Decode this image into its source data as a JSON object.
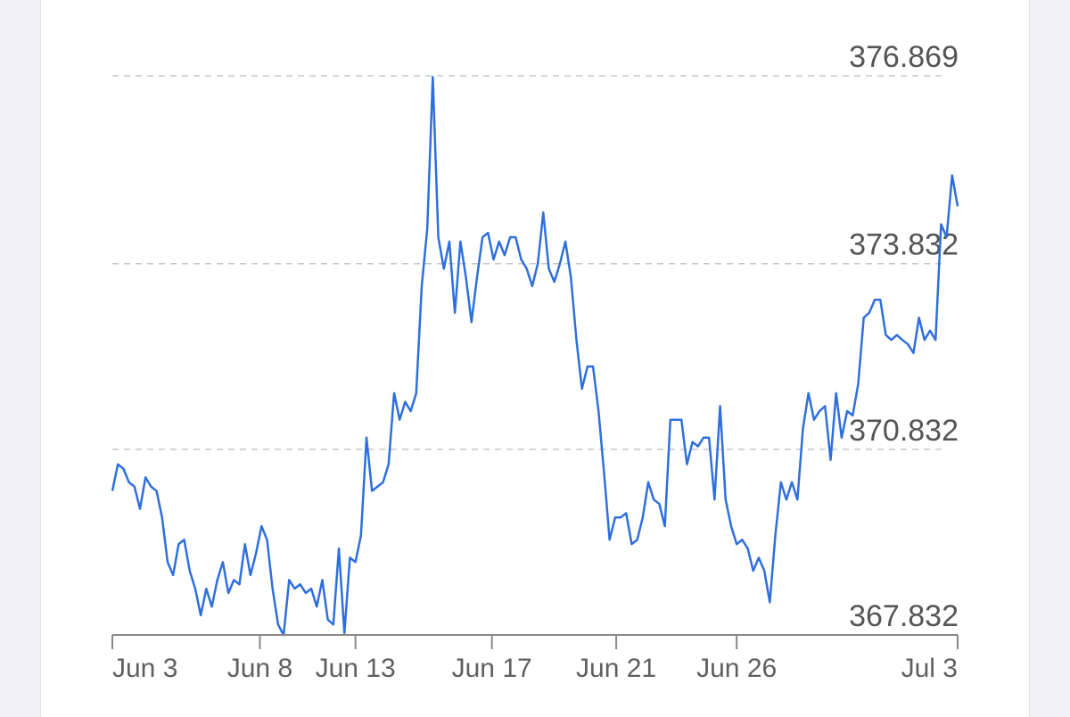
{
  "chart_data": {
    "type": "line",
    "values": [
      370.16,
      370.59,
      370.52,
      370.3,
      370.23,
      369.87,
      370.38,
      370.23,
      370.16,
      369.73,
      369.01,
      368.8,
      369.3,
      369.37,
      368.87,
      368.58,
      368.15,
      368.58,
      368.29,
      368.72,
      369.01,
      368.51,
      368.72,
      368.65,
      369.3,
      368.8,
      369.15,
      369.59,
      369.37,
      368.58,
      368.0,
      367.83,
      368.72,
      368.58,
      368.65,
      368.51,
      368.58,
      368.29,
      368.72,
      368.08,
      368.0,
      369.23,
      367.86,
      369.08,
      369.01,
      369.44,
      371.02,
      370.16,
      370.23,
      370.3,
      370.59,
      371.74,
      371.31,
      371.6,
      371.45,
      371.74,
      373.47,
      374.4,
      376.85,
      374.26,
      373.75,
      374.19,
      373.04,
      374.19,
      373.61,
      372.89,
      373.61,
      374.26,
      374.33,
      373.9,
      374.19,
      373.97,
      374.26,
      374.26,
      373.9,
      373.75,
      373.47,
      373.83,
      374.66,
      373.75,
      373.54,
      373.83,
      374.19,
      373.61,
      372.6,
      371.81,
      372.17,
      372.17,
      371.45,
      370.45,
      369.37,
      369.73,
      369.73,
      369.8,
      369.3,
      369.37,
      369.73,
      370.3,
      370.02,
      369.95,
      369.59,
      371.31,
      371.31,
      371.31,
      370.59,
      370.95,
      370.88,
      371.02,
      371.02,
      370.02,
      371.53,
      370.02,
      369.59,
      369.3,
      369.37,
      369.23,
      368.87,
      369.08,
      368.87,
      368.36,
      369.44,
      370.3,
      370.02,
      370.3,
      370.02,
      371.17,
      371.74,
      371.31,
      371.45,
      371.53,
      370.66,
      371.74,
      371.02,
      371.45,
      371.38,
      371.89,
      372.96,
      373.04,
      373.25,
      373.25,
      372.68,
      372.6,
      372.68,
      372.6,
      372.53,
      372.39,
      372.96,
      372.6,
      372.75,
      372.6,
      374.47,
      374.26,
      375.26,
      374.76
    ],
    "color": "#2f6fdd",
    "xlim": [
      0,
      153
    ],
    "xticks": [
      {
        "value": 0,
        "label": "Jun 3"
      },
      {
        "value": 26.7,
        "label": "Jun 8"
      },
      {
        "value": 44,
        "label": "Jun 13"
      },
      {
        "value": 68.7,
        "label": "Jun 17"
      },
      {
        "value": 91.2,
        "label": "Jun 21"
      },
      {
        "value": 113,
        "label": "Jun 26"
      },
      {
        "value": 153,
        "label": "Jul 3"
      }
    ],
    "ylim": [
      367.832,
      376.869
    ],
    "yticks": [
      367.832,
      370.832,
      373.832,
      376.869
    ],
    "grid": true
  }
}
